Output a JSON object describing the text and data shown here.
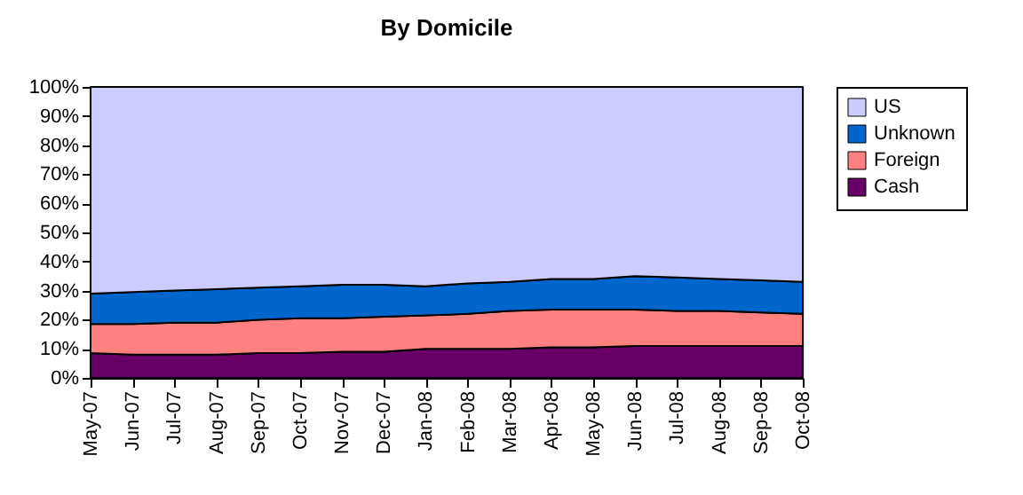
{
  "chart_data": {
    "type": "area",
    "title": "By Domicile",
    "stacked": true,
    "legend": "right",
    "categories": [
      "May-07",
      "Jun-07",
      "Jul-07",
      "Aug-07",
      "Sep-07",
      "Oct-07",
      "Nov-07",
      "Dec-07",
      "Jan-08",
      "Feb-08",
      "Mar-08",
      "Apr-08",
      "May-08",
      "Jun-08",
      "Jul-08",
      "Aug-08",
      "Sep-08",
      "Oct-08"
    ],
    "series": [
      {
        "name": "Cash",
        "color": "#660066",
        "values": [
          8.5,
          8,
          8,
          8,
          8.5,
          8.5,
          9,
          9,
          10,
          10,
          10,
          10.5,
          10.5,
          11,
          11,
          11,
          11,
          11
        ]
      },
      {
        "name": "Foreign",
        "color": "#ff8080",
        "values": [
          10,
          10.5,
          11,
          11,
          11.5,
          12,
          11.5,
          12,
          11.5,
          12,
          13,
          13,
          13,
          12.5,
          12,
          12,
          11.5,
          11
        ]
      },
      {
        "name": "Unknown",
        "color": "#0066cc",
        "values": [
          10.5,
          11,
          11,
          11.5,
          11,
          11,
          11.5,
          11,
          10,
          10.5,
          10,
          10.5,
          10.5,
          11.5,
          11.5,
          11,
          11,
          11
        ]
      },
      {
        "name": "US",
        "color": "#ccccff",
        "values": [
          71,
          70.5,
          70,
          69.5,
          69,
          68.5,
          68,
          68,
          68.5,
          67.5,
          67,
          66,
          66,
          65,
          65.5,
          66,
          66.5,
          67
        ]
      }
    ],
    "ylim": [
      0,
      100
    ],
    "yticks": [
      {
        "value": 0,
        "label": "0%"
      },
      {
        "value": 10,
        "label": "10%"
      },
      {
        "value": 20,
        "label": "20%"
      },
      {
        "value": 30,
        "label": "30%"
      },
      {
        "value": 40,
        "label": "40%"
      },
      {
        "value": 50,
        "label": "50%"
      },
      {
        "value": 60,
        "label": "60%"
      },
      {
        "value": 70,
        "label": "70%"
      },
      {
        "value": 80,
        "label": "80%"
      },
      {
        "value": 90,
        "label": "90%"
      },
      {
        "value": 100,
        "label": "100%"
      }
    ]
  }
}
